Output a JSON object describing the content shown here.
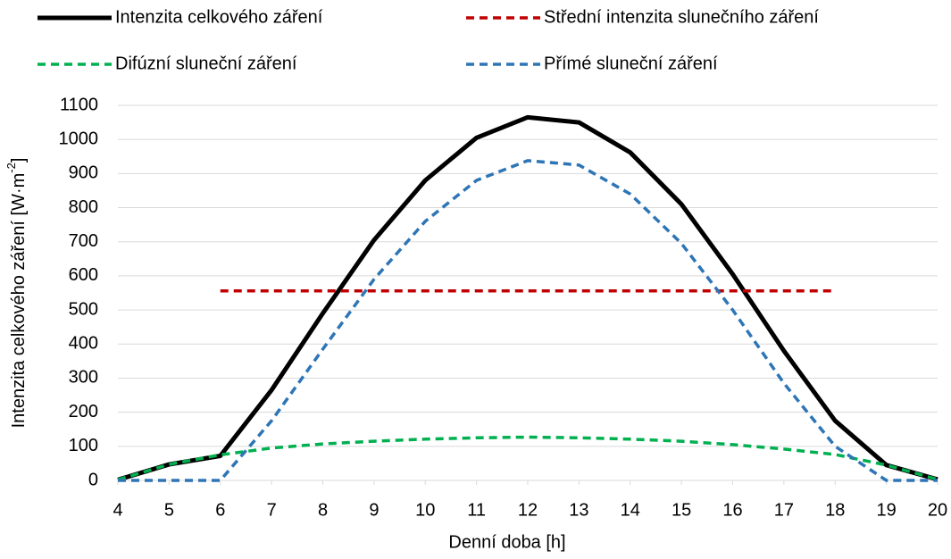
{
  "chart_data": {
    "type": "line",
    "y_label": {
      "text": "Intenzita celkového záření [W·m",
      "superscript": "-2",
      "suffix": "]"
    },
    "x_label": "Denní doba [h]",
    "x": [
      4,
      5,
      6,
      7,
      8,
      9,
      10,
      11,
      12,
      13,
      14,
      15,
      16,
      17,
      18,
      19,
      20
    ],
    "xlim": [
      4,
      20
    ],
    "xticks": [
      4,
      5,
      6,
      7,
      8,
      9,
      10,
      11,
      12,
      13,
      14,
      15,
      16,
      17,
      18,
      19,
      20
    ],
    "ylim": [
      0,
      1100
    ],
    "yticks": [
      0,
      100,
      200,
      300,
      400,
      500,
      600,
      700,
      800,
      900,
      1000,
      1100
    ],
    "grid": true,
    "legend": "top",
    "series": [
      {
        "name": "Intenzita celkového záření",
        "color": "#000000",
        "dash": "solid",
        "values": [
          2,
          47,
          72,
          265,
          490,
          705,
          880,
          1005,
          1065,
          1050,
          962,
          810,
          605,
          380,
          175,
          45,
          3
        ]
      },
      {
        "name": "Střední intenzita slunečního záření",
        "color": "#c00000",
        "dash": "dashed",
        "values": [
          null,
          null,
          556,
          556,
          556,
          556,
          556,
          556,
          556,
          556,
          556,
          556,
          556,
          556,
          556,
          null,
          null
        ]
      },
      {
        "name": "Difúzní sluneční záření",
        "color": "#00b050",
        "dash": "dashed",
        "values": [
          2,
          47,
          75,
          95,
          107,
          115,
          121,
          125,
          127,
          125,
          121,
          115,
          105,
          92,
          76,
          45,
          3
        ]
      },
      {
        "name": "Přímé sluneční záření",
        "color": "#2e75b6",
        "dash": "dashed",
        "values": [
          0,
          0,
          0,
          175,
          385,
          590,
          760,
          880,
          938,
          925,
          840,
          695,
          500,
          285,
          100,
          0,
          0
        ]
      }
    ]
  }
}
